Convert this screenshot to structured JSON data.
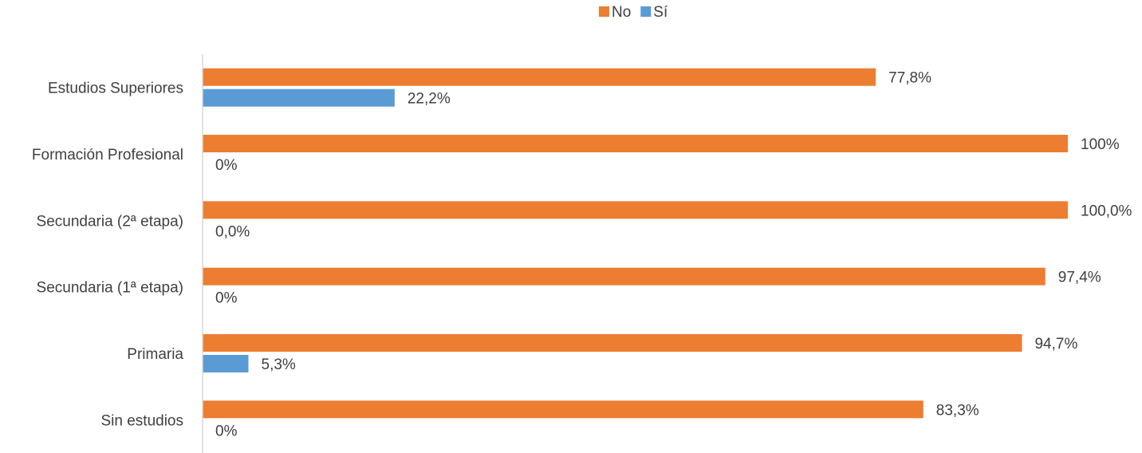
{
  "chart_data": {
    "type": "bar",
    "orientation": "horizontal",
    "categories": [
      "Estudios Superiores",
      "Formación Profesional",
      "Secundaria (2ª etapa)",
      "Secundaria (1ª etapa)",
      "Primaria",
      "Sin estudios"
    ],
    "series": [
      {
        "name": "No",
        "color": "#ED7D31",
        "values": [
          77.8,
          100,
          100.0,
          97.4,
          94.7,
          83.3
        ],
        "labels": [
          "77,8%",
          "100%",
          "100,0%",
          "97,4%",
          "94,7%",
          "83,3%"
        ]
      },
      {
        "name": "Sí",
        "color": "#5B9BD5",
        "values": [
          22.2,
          0,
          0.0,
          0,
          5.3,
          0
        ],
        "labels": [
          "22,2%",
          "0%",
          "0,0%",
          "0%",
          "5,3%",
          "0%"
        ]
      }
    ],
    "xlim": [
      0,
      100
    ],
    "grid": false,
    "legend_position": "top-center",
    "axis_color": "#D9D9D9",
    "text_color": "#404040"
  }
}
